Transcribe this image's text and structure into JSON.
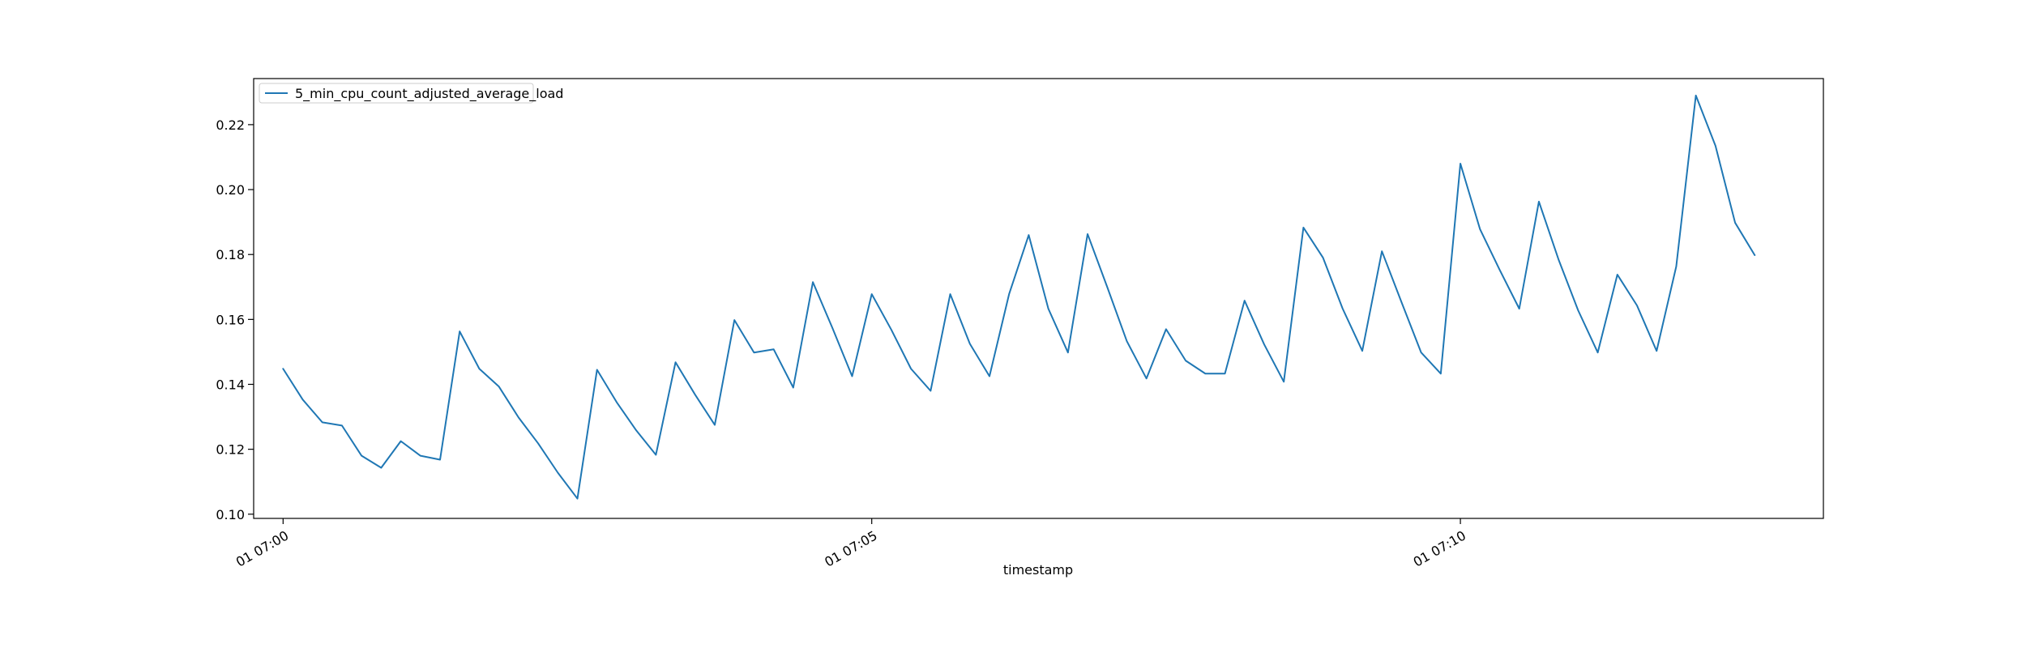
{
  "chart_data": {
    "type": "line",
    "title": "",
    "xlabel": "timestamp",
    "ylabel": "",
    "x_start": "01 07:00",
    "x_step_seconds": 10,
    "xlim": [
      -15,
      785
    ],
    "ylim": [
      0.0987,
      0.2342
    ],
    "x_ticks": [
      {
        "value": 0,
        "label": "01 07:00"
      },
      {
        "value": 300,
        "label": "01 07:05"
      },
      {
        "value": 600,
        "label": "01 07:10"
      }
    ],
    "y_ticks": [
      {
        "value": 0.1,
        "label": "0.10"
      },
      {
        "value": 0.12,
        "label": "0.12"
      },
      {
        "value": 0.14,
        "label": "0.14"
      },
      {
        "value": 0.16,
        "label": "0.16"
      },
      {
        "value": 0.18,
        "label": "0.18"
      },
      {
        "value": 0.2,
        "label": "0.20"
      },
      {
        "value": 0.22,
        "label": "0.22"
      }
    ],
    "grid": false,
    "legend": {
      "placement": "top-left"
    },
    "series": [
      {
        "name": "5_min_cpu_count_adjusted_average_load",
        "color": "#1f77b4",
        "values": [
          0.1448,
          0.1353,
          0.1283,
          0.1273,
          0.118,
          0.1143,
          0.1225,
          0.118,
          0.1168,
          0.1563,
          0.1448,
          0.1393,
          0.1298,
          0.1218,
          0.1128,
          0.1048,
          0.1445,
          0.1345,
          0.1258,
          0.1183,
          0.1468,
          0.1368,
          0.1275,
          0.1598,
          0.1498,
          0.1508,
          0.139,
          0.1715,
          0.1573,
          0.1425,
          0.1678,
          0.1568,
          0.1448,
          0.138,
          0.1678,
          0.1525,
          0.1425,
          0.1678,
          0.186,
          0.1633,
          0.1498,
          0.1863,
          0.17,
          0.1533,
          0.1418,
          0.157,
          0.1473,
          0.1433,
          0.1433,
          0.1658,
          0.1523,
          0.1408,
          0.1883,
          0.179,
          0.1633,
          0.1503,
          0.181,
          0.1653,
          0.1498,
          0.1433,
          0.208,
          0.1878,
          0.1753,
          0.1633,
          0.1963,
          0.1785,
          0.1628,
          0.1498,
          0.1738,
          0.1643,
          0.1503,
          0.1763,
          0.229,
          0.2135,
          0.1898,
          0.1798
        ]
      }
    ]
  }
}
